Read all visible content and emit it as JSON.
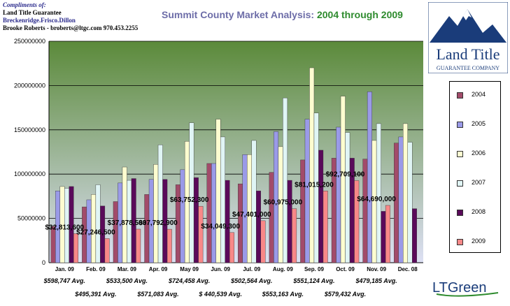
{
  "header": {
    "compliments": "Compliments of:",
    "company": "Land Title Guarantee",
    "offices": "Breckenridge.Frisco.Dillon",
    "contact": "Brooke Roberts - broberts@ltgc.com 970.453.2255"
  },
  "logo": {
    "line1": "Land Title",
    "line2": "GUARANTEE COMPANY"
  },
  "footer_logo": {
    "text": "LTGreen"
  },
  "colors": {
    "2004": "#a24b6a",
    "2005": "#9a9ae8",
    "2006": "#fdfdd0",
    "2007": "#e0f5f5",
    "2008": "#5a0a5a",
    "2009": "#f88888",
    "plot_top": "#5b8a3a",
    "plot_bottom": "#dde0f4"
  },
  "chart_data": {
    "type": "bar",
    "title": "Summit County Market Analysis:",
    "title_range": "2004 through 2009",
    "categories": [
      "Jan. 09",
      "Feb. 09",
      "Mar. 09",
      "Apr. 09",
      "May 09",
      "Jun. 09",
      "Jul. 09",
      "Aug. 09",
      "Sep. 09",
      "Oct. 09",
      "Nov. 09",
      "Dec. 08"
    ],
    "series": [
      {
        "name": "2004",
        "values": [
          41000000,
          63000000,
          69000000,
          77000000,
          88000000,
          112000000,
          89000000,
          102000000,
          116000000,
          118000000,
          117000000,
          135000000
        ]
      },
      {
        "name": "2005",
        "values": [
          81000000,
          71000000,
          90000000,
          94000000,
          105000000,
          112000000,
          122000000,
          148000000,
          162000000,
          153000000,
          193000000,
          142000000
        ]
      },
      {
        "name": "2006",
        "values": [
          86000000,
          77000000,
          108000000,
          111000000,
          137000000,
          162000000,
          122000000,
          131000000,
          220000000,
          188000000,
          138000000,
          157000000
        ]
      },
      {
        "name": "2007",
        "values": [
          84000000,
          88000000,
          93000000,
          133000000,
          158000000,
          142000000,
          138000000,
          186000000,
          169000000,
          147000000,
          157000000,
          136000000
        ]
      },
      {
        "name": "2008",
        "values": [
          86000000,
          64000000,
          95000000,
          94000000,
          96000000,
          93000000,
          81000000,
          93000000,
          127000000,
          118000000,
          58000000,
          61000000
        ]
      },
      {
        "name": "2009",
        "values": [
          32813600,
          27246500,
          37878500,
          37792900,
          63752300,
          34049300,
          47401000,
          60975000,
          81015200,
          92709100,
          64690000,
          null
        ]
      }
    ],
    "data_labels": [
      "$32,813,600",
      "$27,246,500",
      "$37,878,500",
      "$37,792,900",
      "$63,752,300",
      "$34,049,300",
      "$47,401,000",
      "$60,975,000",
      "$81,015,200",
      "$92,709,100",
      "$64,690,000"
    ],
    "avg_labels": [
      "$598,747 Avg.",
      "$495,391 Avg.",
      "$533,500 Avg.",
      "$571,083 Avg.",
      "$724,458 Avg.",
      "$ 440,539 Avg.",
      "$502,564 Avg.",
      "$553,163 Avg.",
      "$551,124 Avg.",
      "$579,432 Avg.",
      "$479,185 Avg."
    ],
    "y_ticks": [
      "0",
      "50000000",
      "100000000",
      "150000000",
      "200000000",
      "250000000"
    ],
    "ylim": [
      0,
      250000000
    ],
    "legend": [
      "2004",
      "2005",
      "2006",
      "2007",
      "2008",
      "2009"
    ],
    "xlabel": "",
    "ylabel": ""
  }
}
